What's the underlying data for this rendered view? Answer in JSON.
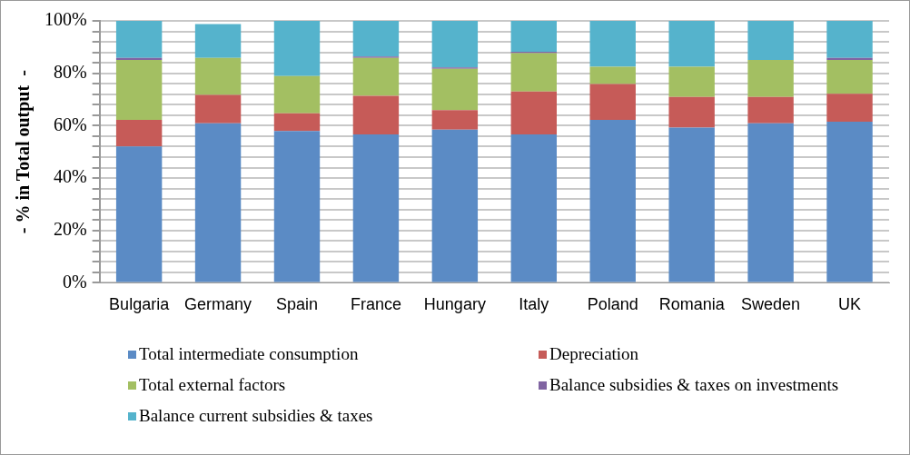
{
  "chart_data": {
    "type": "bar",
    "stacked": true,
    "ylabel": "- % in Total output  -",
    "categories": [
      "Bulgaria",
      "Germany",
      "Spain",
      "France",
      "Hungary",
      "Italy",
      "Poland",
      "Romania",
      "Sweden",
      "UK"
    ],
    "series": [
      {
        "name": "Total intermediate consumption",
        "color": "#5b8bc5",
        "values": [
          52.1,
          60.9,
          58,
          56.7,
          58.5,
          56.7,
          62.2,
          59.3,
          60.9,
          61.5
        ]
      },
      {
        "name": "Depreciation",
        "color": "#c65b58",
        "values": [
          10.1,
          10.8,
          6.7,
          14.7,
          7.4,
          16.3,
          13.7,
          11.7,
          10.1,
          10.7
        ]
      },
      {
        "name": "Total external factors",
        "color": "#a3bf62",
        "values": [
          22.9,
          14.2,
          14.2,
          14.5,
          15.8,
          14.7,
          6.6,
          11.5,
          14.1,
          12.9
        ]
      },
      {
        "name": "Balance subsidies & taxes on investments",
        "color": "#8064a2",
        "values": [
          0.8,
          0,
          0,
          0.5,
          0.5,
          0.5,
          0,
          0,
          0,
          0.8
        ]
      },
      {
        "name": "Balance current subsidies & taxes",
        "color": "#55b3cc",
        "values": [
          14.1,
          12.9,
          21.1,
          13.6,
          17.8,
          11.8,
          17.5,
          17.5,
          14.9,
          14.1
        ]
      }
    ],
    "ylim": [
      0,
      100
    ],
    "yticks": [
      {
        "value": 0,
        "label": "0%"
      },
      {
        "value": 4,
        "label": null
      },
      {
        "value": 8,
        "label": null
      },
      {
        "value": 12,
        "label": null
      },
      {
        "value": 16,
        "label": null
      },
      {
        "value": 20,
        "label": "20%"
      },
      {
        "value": 24,
        "label": null
      },
      {
        "value": 28,
        "label": null
      },
      {
        "value": 32,
        "label": null
      },
      {
        "value": 36,
        "label": null
      },
      {
        "value": 40,
        "label": "40%"
      },
      {
        "value": 44,
        "label": null
      },
      {
        "value": 48,
        "label": null
      },
      {
        "value": 52,
        "label": null
      },
      {
        "value": 56,
        "label": null
      },
      {
        "value": 60,
        "label": "60%"
      },
      {
        "value": 64,
        "label": null
      },
      {
        "value": 68,
        "label": null
      },
      {
        "value": 72,
        "label": null
      },
      {
        "value": 76,
        "label": null
      },
      {
        "value": 80,
        "label": "80%"
      },
      {
        "value": 84,
        "label": null
      },
      {
        "value": 88,
        "label": null
      },
      {
        "value": 92,
        "label": null
      },
      {
        "value": 96,
        "label": null
      },
      {
        "value": 100,
        "label": "100%"
      }
    ],
    "grid": "y",
    "legend": "bottom"
  }
}
